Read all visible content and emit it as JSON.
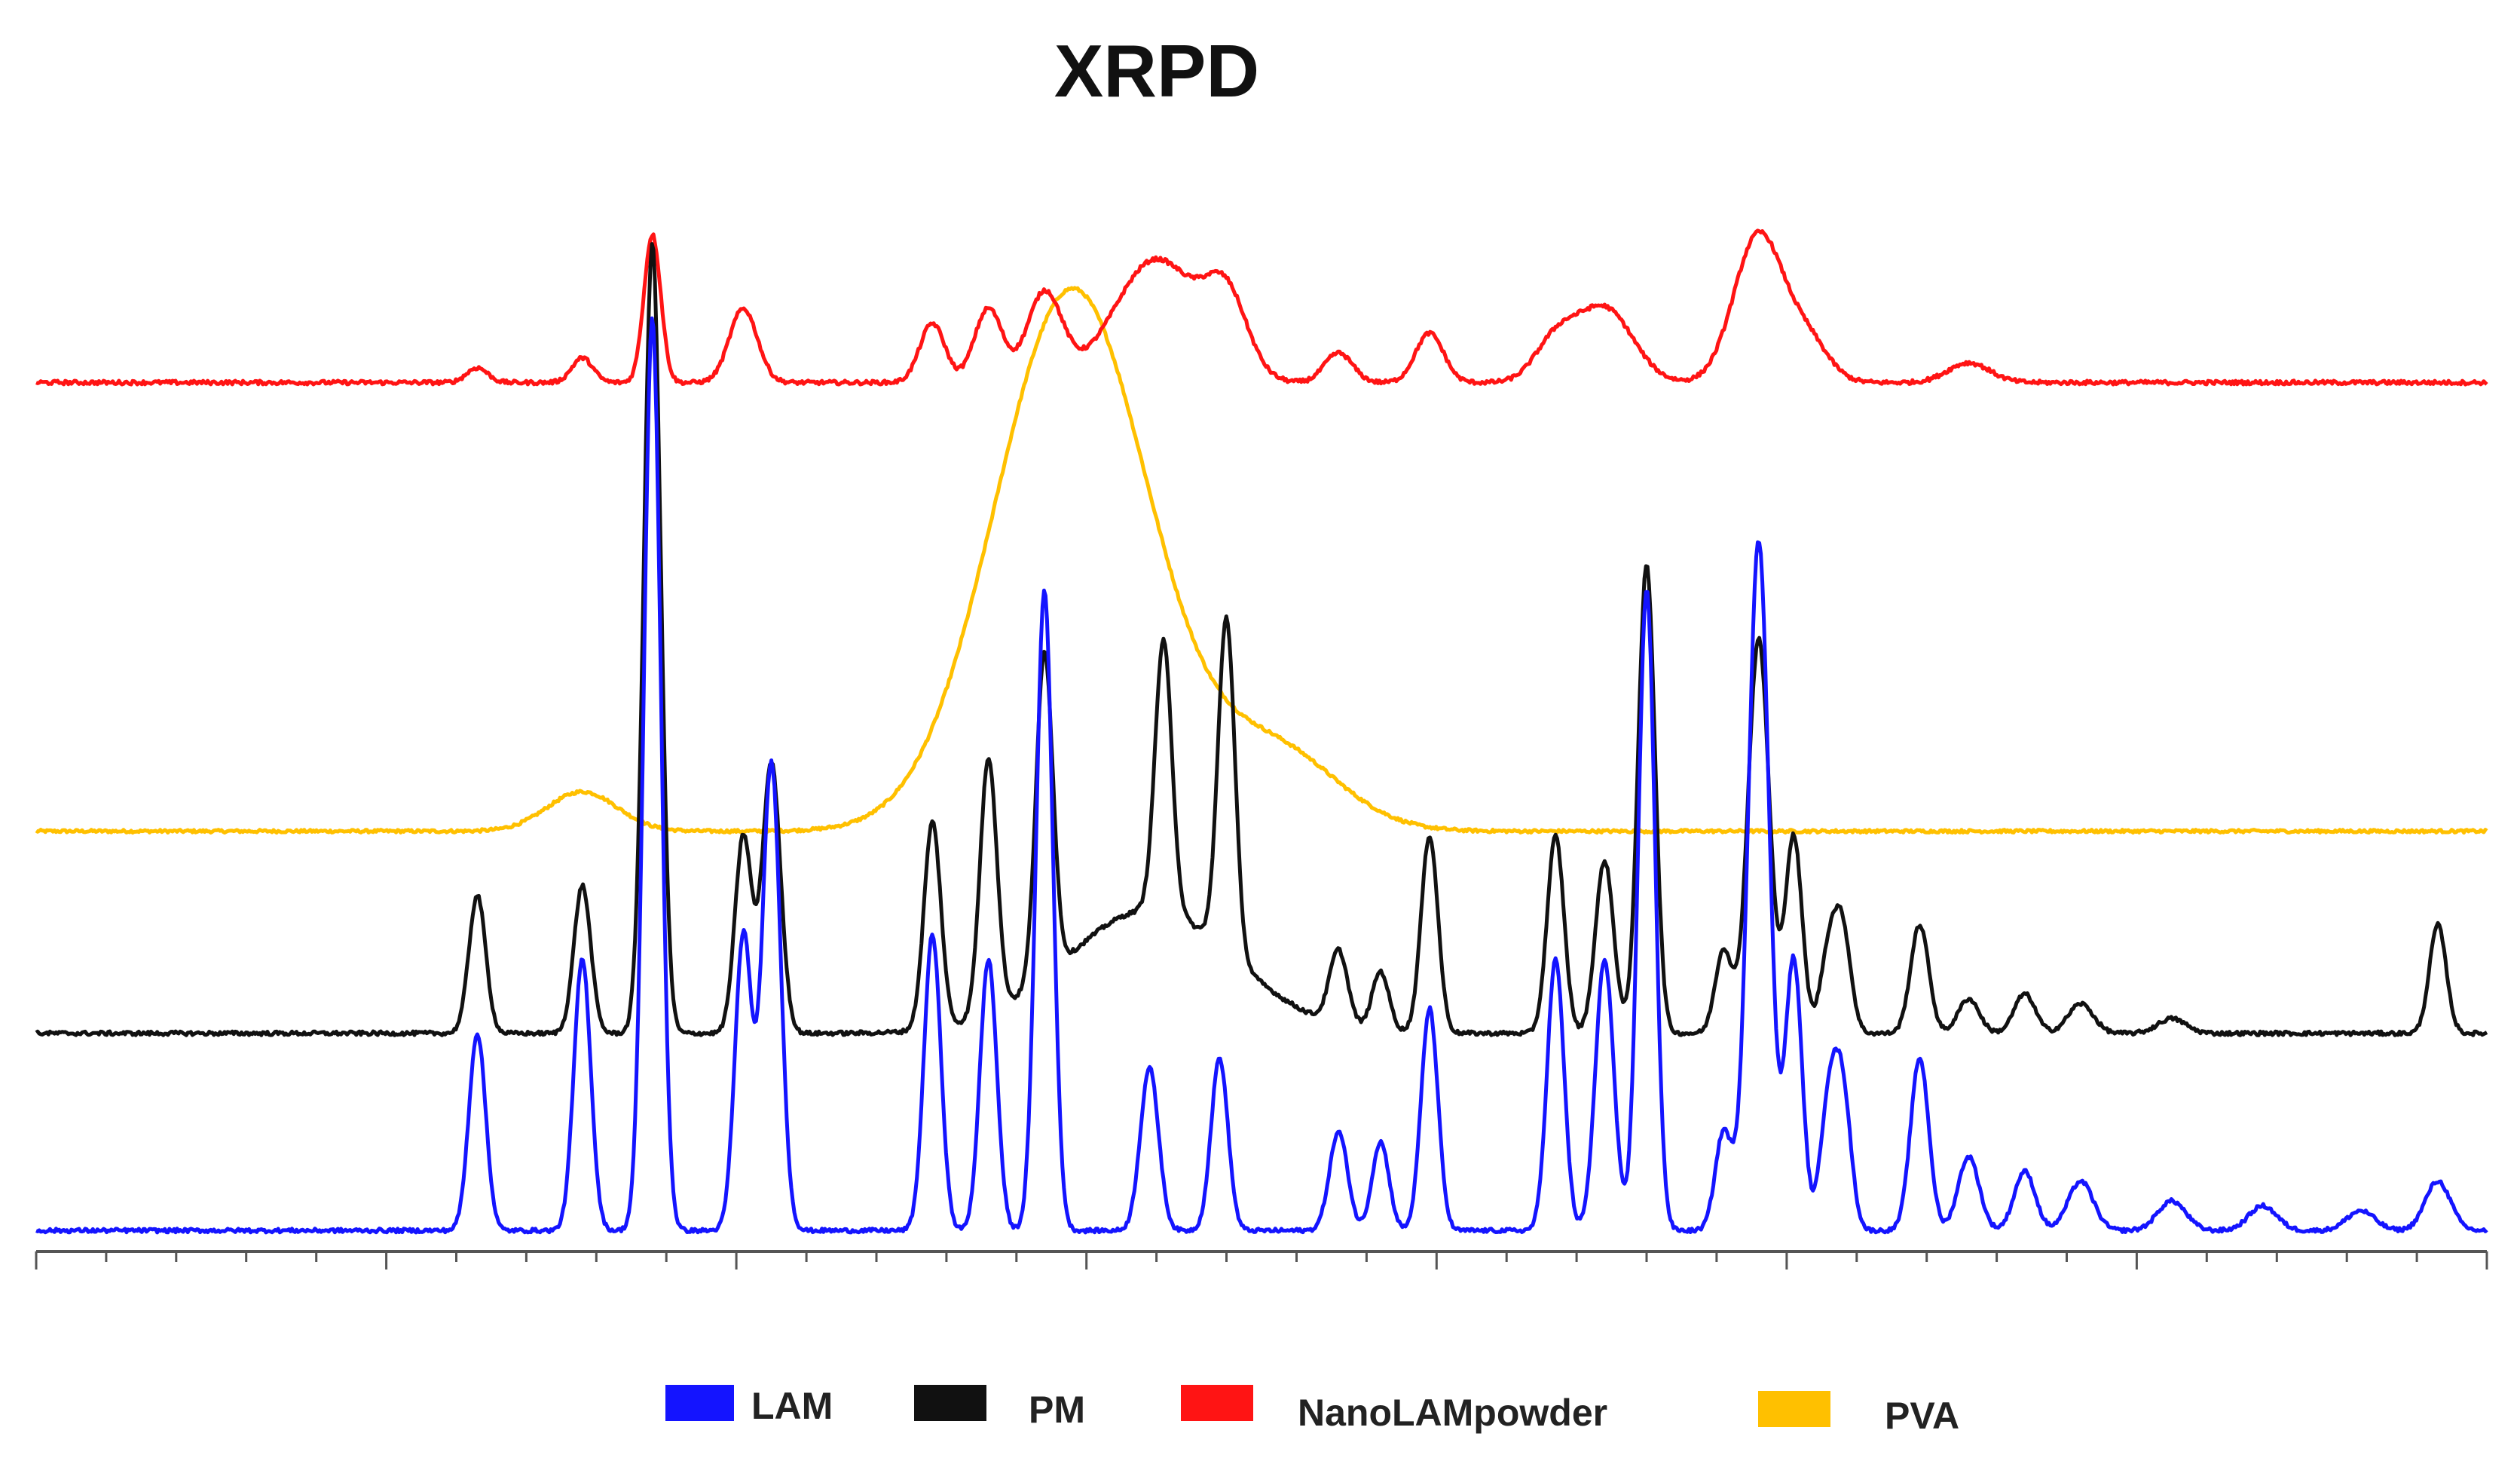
{
  "chart_data": {
    "type": "line",
    "title": "XRPD",
    "xlabel": "",
    "ylabel": "",
    "x_range": [
      5,
      40
    ],
    "grid": false,
    "legend_position": "bottom",
    "series": [
      {
        "name": "LAM",
        "color": "#1414ff",
        "baseline": 0.05,
        "noise": 0.004,
        "peaks": [
          [
            11.3,
            0.4,
            0.12
          ],
          [
            12.8,
            0.55,
            0.12
          ],
          [
            13.8,
            1.85,
            0.12
          ],
          [
            15.1,
            0.6,
            0.12
          ],
          [
            15.5,
            0.95,
            0.13
          ],
          [
            17.8,
            0.6,
            0.12
          ],
          [
            18.6,
            0.55,
            0.12
          ],
          [
            19.4,
            1.3,
            0.12
          ],
          [
            20.9,
            0.33,
            0.13
          ],
          [
            21.9,
            0.35,
            0.12
          ],
          [
            23.6,
            0.2,
            0.13
          ],
          [
            24.2,
            0.18,
            0.12
          ],
          [
            24.9,
            0.45,
            0.12
          ],
          [
            26.7,
            0.55,
            0.12
          ],
          [
            27.4,
            0.55,
            0.13
          ],
          [
            28.0,
            1.3,
            0.12
          ],
          [
            29.1,
            0.2,
            0.12
          ],
          [
            29.6,
            1.4,
            0.15
          ],
          [
            30.1,
            0.55,
            0.12
          ],
          [
            30.6,
            0.25,
            0.12
          ],
          [
            30.8,
            0.27,
            0.12
          ],
          [
            31.9,
            0.35,
            0.13
          ],
          [
            32.6,
            0.15,
            0.15
          ],
          [
            33.4,
            0.12,
            0.15
          ],
          [
            34.2,
            0.1,
            0.18
          ],
          [
            35.5,
            0.06,
            0.2
          ],
          [
            36.8,
            0.05,
            0.2
          ],
          [
            38.2,
            0.04,
            0.2
          ],
          [
            39.3,
            0.1,
            0.18
          ]
        ]
      },
      {
        "name": "PM",
        "color": "#111111",
        "baseline": 0.45,
        "noise": 0.004,
        "peaks": [
          [
            11.3,
            0.28,
            0.12
          ],
          [
            12.8,
            0.3,
            0.12
          ],
          [
            13.8,
            1.6,
            0.12
          ],
          [
            15.1,
            0.4,
            0.12
          ],
          [
            15.5,
            0.55,
            0.13
          ],
          [
            17.8,
            0.42,
            0.12
          ],
          [
            18.6,
            0.52,
            0.12
          ],
          [
            19.4,
            0.66,
            0.12
          ],
          [
            21.1,
            0.55,
            0.12
          ],
          [
            20.9,
            0.25,
            1.2
          ],
          [
            22.0,
            0.68,
            0.12
          ],
          [
            23.6,
            0.15,
            0.13
          ],
          [
            24.2,
            0.12,
            0.12
          ],
          [
            24.9,
            0.4,
            0.12
          ],
          [
            26.7,
            0.4,
            0.12
          ],
          [
            27.4,
            0.35,
            0.13
          ],
          [
            28.0,
            0.95,
            0.12
          ],
          [
            29.1,
            0.17,
            0.12
          ],
          [
            29.6,
            0.8,
            0.15
          ],
          [
            30.1,
            0.4,
            0.12
          ],
          [
            30.6,
            0.16,
            0.12
          ],
          [
            30.8,
            0.2,
            0.12
          ],
          [
            31.9,
            0.22,
            0.13
          ],
          [
            32.6,
            0.07,
            0.15
          ],
          [
            33.4,
            0.08,
            0.15
          ],
          [
            34.2,
            0.06,
            0.18
          ],
          [
            35.5,
            0.03,
            0.2
          ],
          [
            39.3,
            0.22,
            0.12
          ]
        ]
      },
      {
        "name": "NanoLAMpowder",
        "color": "#ff1414",
        "baseline": 1.77,
        "noise": 0.004,
        "peaks": [
          [
            11.3,
            0.03,
            0.15
          ],
          [
            12.8,
            0.05,
            0.15
          ],
          [
            13.8,
            0.3,
            0.12
          ],
          [
            15.1,
            0.15,
            0.2
          ],
          [
            17.8,
            0.12,
            0.18
          ],
          [
            18.6,
            0.15,
            0.2
          ],
          [
            19.4,
            0.18,
            0.25
          ],
          [
            21.0,
            0.25,
            0.6
          ],
          [
            22.0,
            0.15,
            0.3
          ],
          [
            23.6,
            0.06,
            0.2
          ],
          [
            24.9,
            0.1,
            0.2
          ],
          [
            26.7,
            0.08,
            0.3
          ],
          [
            27.4,
            0.15,
            0.4
          ],
          [
            29.6,
            0.3,
            0.35
          ],
          [
            30.3,
            0.08,
            0.3
          ],
          [
            32.6,
            0.04,
            0.3
          ]
        ]
      },
      {
        "name": "PVA",
        "color": "#ffc000",
        "baseline": 0.86,
        "noise": 0.003,
        "peaks": [
          [
            12.8,
            0.08,
            0.5
          ],
          [
            19.8,
            1.1,
            1.1
          ],
          [
            22.7,
            0.16,
            0.9
          ]
        ]
      }
    ]
  },
  "legend": {
    "items": [
      {
        "label": "LAM",
        "color": "#1414ff"
      },
      {
        "label": "PM",
        "color": "#111111"
      },
      {
        "label": "NanoLAMpowder",
        "color": "#ff1414"
      },
      {
        "label": "PVA",
        "color": "#ffc000"
      }
    ]
  }
}
